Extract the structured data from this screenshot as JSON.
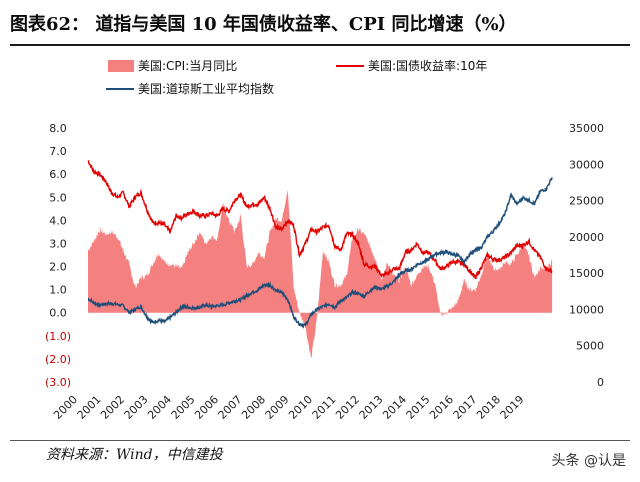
{
  "title": "图表62： 道指与美国 10 年国债收益率、CPI 同比增速（%）",
  "source": "资料来源：Wind，中信建投",
  "watermark": "头条 @认是",
  "colors": {
    "cpi": "#f58080",
    "bond": "#e30000",
    "dow": "#1f4e79"
  },
  "chart_data": {
    "type": "area",
    "legend": [
      "美国:CPI:当月同比",
      "美国:国债收益率:10年",
      "美国:道琼斯工业平均指数"
    ],
    "legend_placement": "top",
    "grid": false,
    "x_ticks": [
      "2000",
      "2001",
      "2002",
      "2003",
      "2004",
      "2005",
      "2006",
      "2007",
      "2008",
      "2009",
      "2010",
      "2011",
      "2012",
      "2013",
      "2014",
      "2015",
      "2016",
      "2017",
      "2018",
      "2019"
    ],
    "x_range": [
      2000,
      2020
    ],
    "left_axis": {
      "range": [
        -3,
        8
      ],
      "ticks": [
        "8.0",
        "7.0",
        "6.0",
        "5.0",
        "4.0",
        "3.0",
        "2.0",
        "1.0",
        "0.0",
        "(1.0)",
        "(2.0)",
        "(3.0)"
      ]
    },
    "right_axis": {
      "range": [
        0,
        35000
      ],
      "ticks": [
        "35000",
        "30000",
        "25000",
        "20000",
        "15000",
        "10000",
        "5000",
        "0"
      ]
    },
    "x": [
      2000.0,
      2000.25,
      2000.5,
      2000.75,
      2001.0,
      2001.25,
      2001.5,
      2001.75,
      2002.0,
      2002.25,
      2002.5,
      2002.75,
      2003.0,
      2003.25,
      2003.5,
      2003.75,
      2004.0,
      2004.25,
      2004.5,
      2004.75,
      2005.0,
      2005.25,
      2005.5,
      2005.75,
      2006.0,
      2006.25,
      2006.5,
      2006.75,
      2007.0,
      2007.25,
      2007.5,
      2007.75,
      2008.0,
      2008.25,
      2008.5,
      2008.75,
      2009.0,
      2009.25,
      2009.5,
      2009.75,
      2010.0,
      2010.25,
      2010.5,
      2010.75,
      2011.0,
      2011.25,
      2011.5,
      2011.75,
      2012.0,
      2012.25,
      2012.5,
      2012.75,
      2013.0,
      2013.25,
      2013.5,
      2013.75,
      2014.0,
      2014.25,
      2014.5,
      2014.75,
      2015.0,
      2015.25,
      2015.5,
      2015.75,
      2016.0,
      2016.25,
      2016.5,
      2016.75,
      2017.0,
      2017.25,
      2017.5,
      2017.75,
      2018.0,
      2018.25,
      2018.5,
      2018.75,
      2019.0,
      2019.25,
      2019.5,
      2019.75
    ],
    "series": [
      {
        "name": "美国:CPI:当月同比",
        "axis": "left",
        "values": [
          2.7,
          3.1,
          3.6,
          3.4,
          3.5,
          3.3,
          2.7,
          2.1,
          1.1,
          1.5,
          1.6,
          2.1,
          2.6,
          2.2,
          2.1,
          2.0,
          1.9,
          2.6,
          3.0,
          3.5,
          3.0,
          3.3,
          3.2,
          4.7,
          4.0,
          3.5,
          4.2,
          2.0,
          2.1,
          2.6,
          2.4,
          3.5,
          4.1,
          4.0,
          5.4,
          1.1,
          0.0,
          -0.6,
          -2.0,
          -0.2,
          2.7,
          2.2,
          1.2,
          1.2,
          1.6,
          3.2,
          3.6,
          3.4,
          2.9,
          2.3,
          1.4,
          2.2,
          1.6,
          1.4,
          2.0,
          1.2,
          1.6,
          2.0,
          2.0,
          1.3,
          -0.1,
          0.0,
          0.2,
          0.5,
          1.4,
          1.0,
          1.0,
          1.7,
          2.5,
          1.9,
          1.9,
          2.2,
          2.1,
          2.5,
          2.9,
          2.5,
          1.5,
          2.0,
          1.8,
          2.3
        ]
      },
      {
        "name": "美国:国债收益率:10年",
        "axis": "left",
        "values": [
          6.6,
          6.1,
          6.0,
          5.7,
          5.2,
          5.0,
          5.2,
          4.6,
          5.0,
          5.2,
          4.5,
          3.9,
          3.9,
          3.8,
          3.5,
          4.2,
          4.1,
          4.3,
          4.4,
          4.2,
          4.2,
          4.3,
          4.2,
          4.5,
          4.4,
          4.9,
          5.1,
          4.6,
          4.7,
          4.7,
          5.0,
          4.5,
          3.7,
          3.6,
          4.0,
          3.8,
          2.5,
          3.0,
          3.6,
          3.5,
          3.7,
          3.8,
          2.9,
          2.7,
          3.4,
          3.4,
          3.0,
          2.1,
          2.0,
          2.0,
          1.6,
          1.7,
          1.9,
          1.9,
          2.6,
          2.7,
          3.0,
          2.6,
          2.6,
          2.3,
          1.9,
          2.0,
          2.2,
          2.2,
          2.1,
          1.8,
          1.5,
          2.0,
          2.5,
          2.3,
          2.3,
          2.4,
          2.6,
          2.9,
          2.9,
          3.1,
          2.7,
          2.4,
          1.9,
          1.8
        ]
      },
      {
        "name": "美国:道琼斯工业平均指数",
        "axis": "right",
        "values": [
          11500,
          10900,
          10600,
          10800,
          10800,
          10700,
          10500,
          9600,
          10000,
          10400,
          9000,
          8200,
          8500,
          8300,
          8900,
          9600,
          10400,
          10300,
          10200,
          10300,
          10600,
          10400,
          10500,
          10600,
          10900,
          11200,
          11300,
          11900,
          12400,
          12700,
          13400,
          13400,
          12600,
          12300,
          11400,
          9000,
          8000,
          7800,
          9300,
          10000,
          10400,
          10800,
          10300,
          11200,
          11600,
          12400,
          12200,
          11800,
          12600,
          13100,
          12800,
          13200,
          13800,
          14800,
          15300,
          15500,
          16200,
          16500,
          16900,
          17600,
          17800,
          17900,
          17600,
          17400,
          16500,
          17700,
          18100,
          18600,
          20000,
          20800,
          21900,
          23200,
          25800,
          24500,
          25400,
          25100,
          24500,
          26300,
          26600,
          28200
        ]
      }
    ]
  }
}
